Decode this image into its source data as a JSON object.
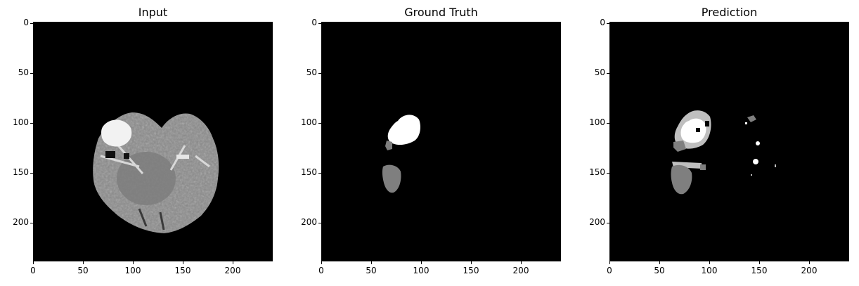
{
  "panels": [
    {
      "title": "Input"
    },
    {
      "title": "Ground Truth"
    },
    {
      "title": "Prediction"
    }
  ],
  "axes": {
    "ytick_labels": [
      "0",
      "50",
      "100",
      "150",
      "200"
    ],
    "xtick_labels": [
      "0",
      "50",
      "100",
      "150",
      "200"
    ],
    "tick_values": [
      0,
      50,
      100,
      150,
      200
    ],
    "range": [
      0,
      240
    ]
  },
  "colors": {
    "background": "#ffffff",
    "image_background": "#000000",
    "label_bright": "#ffffff",
    "label_mid": "#7f7f7f",
    "label_light": "#bfbfbf"
  }
}
